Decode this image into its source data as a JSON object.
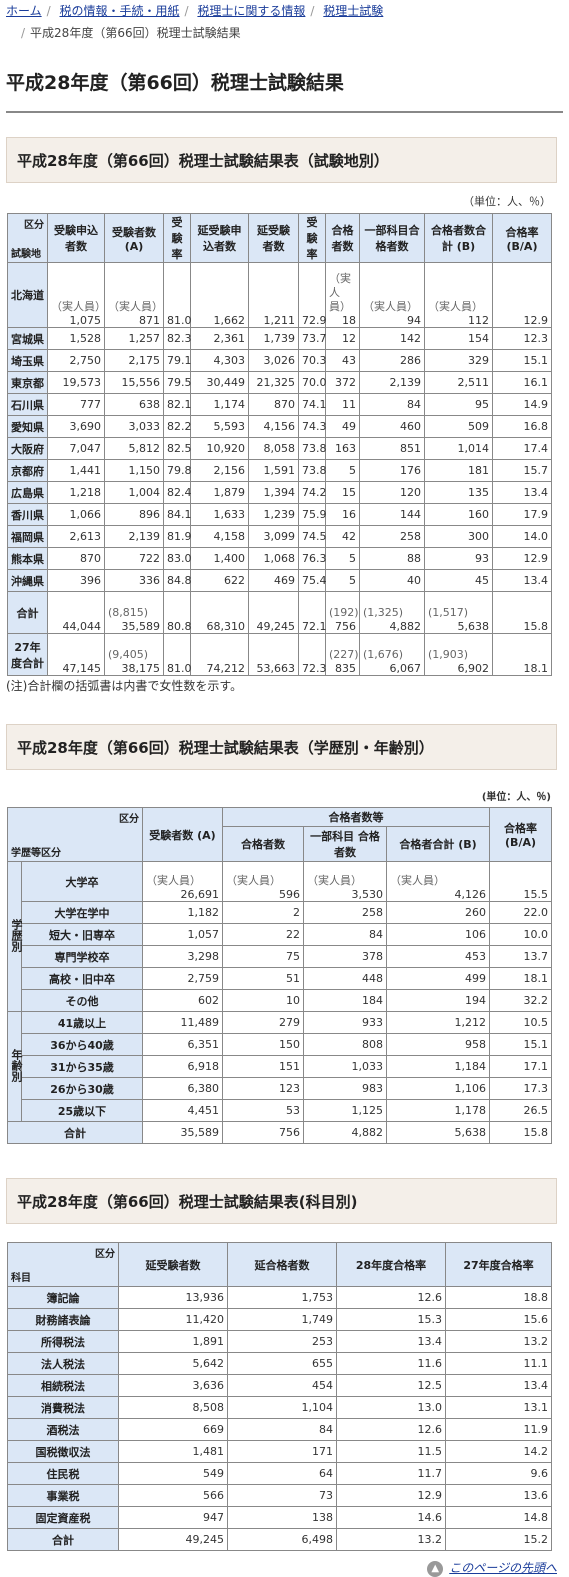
{
  "breadcrumb": {
    "items": [
      "ホーム",
      "税の情報・手続・用紙",
      "税理士に関する情報",
      "税理士試験"
    ],
    "current": "平成28年度（第66回）税理士試験結果"
  },
  "page_title": "平成28年度（第66回）税理士試験結果",
  "table1": {
    "title": "平成28年度（第66回）税理士試験結果表（試験地別）",
    "unit": "（単位：人、％）",
    "corner_top": "区分",
    "corner_bottom": "試験地",
    "headers": [
      "受験申込者数",
      "受験者数 (A)",
      "受験率",
      "延受験申込者数",
      "延受験者数",
      "受験率",
      "合格者数",
      "一部科目合格者数",
      "合格者数合計 (B)",
      "合格率 (B/A)"
    ],
    "note_actual": "（実人員）",
    "rows": [
      {
        "name": "北海道",
        "v": [
          "1,075",
          "871",
          "81.0",
          "1,662",
          "1,211",
          "72.9",
          "18",
          "94",
          "112",
          "12.9"
        ]
      },
      {
        "name": "宮城県",
        "v": [
          "1,528",
          "1,257",
          "82.3",
          "2,361",
          "1,739",
          "73.7",
          "12",
          "142",
          "154",
          "12.3"
        ]
      },
      {
        "name": "埼玉県",
        "v": [
          "2,750",
          "2,175",
          "79.1",
          "4,303",
          "3,026",
          "70.3",
          "43",
          "286",
          "329",
          "15.1"
        ]
      },
      {
        "name": "東京都",
        "v": [
          "19,573",
          "15,556",
          "79.5",
          "30,449",
          "21,325",
          "70.0",
          "372",
          "2,139",
          "2,511",
          "16.1"
        ]
      },
      {
        "name": "石川県",
        "v": [
          "777",
          "638",
          "82.1",
          "1,174",
          "870",
          "74.1",
          "11",
          "84",
          "95",
          "14.9"
        ]
      },
      {
        "name": "愛知県",
        "v": [
          "3,690",
          "3,033",
          "82.2",
          "5,593",
          "4,156",
          "74.3",
          "49",
          "460",
          "509",
          "16.8"
        ]
      },
      {
        "name": "大阪府",
        "v": [
          "7,047",
          "5,812",
          "82.5",
          "10,920",
          "8,058",
          "73.8",
          "163",
          "851",
          "1,014",
          "17.4"
        ]
      },
      {
        "name": "京都府",
        "v": [
          "1,441",
          "1,150",
          "79.8",
          "2,156",
          "1,591",
          "73.8",
          "5",
          "176",
          "181",
          "15.7"
        ]
      },
      {
        "name": "広島県",
        "v": [
          "1,218",
          "1,004",
          "82.4",
          "1,879",
          "1,394",
          "74.2",
          "15",
          "120",
          "135",
          "13.4"
        ]
      },
      {
        "name": "香川県",
        "v": [
          "1,066",
          "896",
          "84.1",
          "1,633",
          "1,239",
          "75.9",
          "16",
          "144",
          "160",
          "17.9"
        ]
      },
      {
        "name": "福岡県",
        "v": [
          "2,613",
          "2,139",
          "81.9",
          "4,158",
          "3,099",
          "74.5",
          "42",
          "258",
          "300",
          "14.0"
        ]
      },
      {
        "name": "熊本県",
        "v": [
          "870",
          "722",
          "83.0",
          "1,400",
          "1,068",
          "76.3",
          "5",
          "88",
          "93",
          "12.9"
        ]
      },
      {
        "name": "沖縄県",
        "v": [
          "396",
          "336",
          "84.8",
          "622",
          "469",
          "75.4",
          "5",
          "40",
          "45",
          "13.4"
        ]
      }
    ],
    "total": {
      "name": "合計",
      "v": [
        "44,044",
        "35,589",
        "80.8",
        "68,310",
        "49,245",
        "72.1",
        "756",
        "4,882",
        "5,638",
        "15.8"
      ],
      "p": [
        "",
        "(8,815)",
        "",
        "",
        "",
        "",
        "(192)",
        "(1,325)",
        "(1,517)",
        ""
      ]
    },
    "prev": {
      "name": "27年度合計",
      "v": [
        "47,145",
        "38,175",
        "81.0",
        "74,212",
        "53,663",
        "72.3",
        "835",
        "6,067",
        "6,902",
        "18.1"
      ],
      "p": [
        "",
        "(9,405)",
        "",
        "",
        "",
        "",
        "(227)",
        "(1,676)",
        "(1,903)",
        ""
      ]
    },
    "footnote": "(注)合計欄の括弧書は内書で女性数を示す。"
  },
  "table2": {
    "title": "平成28年度（第66回）税理士試験結果表（学歴別・年齢別）",
    "unit": "(単位：人、％)",
    "corner_top": "区分",
    "corner_bottom": "学歴等区分",
    "h_examinees": "受験者数 (A)",
    "h_group": "合格者数等",
    "h_passers": "合格者数",
    "h_partial": "一部科目 合格者数",
    "h_total": "合格者合計 (B)",
    "h_rate": "合格率 (B/A)",
    "group_edu": "学歴別",
    "group_age": "年齢別",
    "note_actual": "（実人員）",
    "rows": [
      {
        "name": "大学卒",
        "v": [
          "26,691",
          "596",
          "3,530",
          "4,126",
          "15.5"
        ]
      },
      {
        "name": "大学在学中",
        "v": [
          "1,182",
          "2",
          "258",
          "260",
          "22.0"
        ]
      },
      {
        "name": "短大・旧専卒",
        "v": [
          "1,057",
          "22",
          "84",
          "106",
          "10.0"
        ]
      },
      {
        "name": "専門学校卒",
        "v": [
          "3,298",
          "75",
          "378",
          "453",
          "13.7"
        ]
      },
      {
        "name": "高校・旧中卒",
        "v": [
          "2,759",
          "51",
          "448",
          "499",
          "18.1"
        ]
      },
      {
        "name": "その他",
        "v": [
          "602",
          "10",
          "184",
          "194",
          "32.2"
        ]
      },
      {
        "name": "41歳以上",
        "v": [
          "11,489",
          "279",
          "933",
          "1,212",
          "10.5"
        ]
      },
      {
        "name": "36から40歳",
        "v": [
          "6,351",
          "150",
          "808",
          "958",
          "15.1"
        ]
      },
      {
        "name": "31から35歳",
        "v": [
          "6,918",
          "151",
          "1,033",
          "1,184",
          "17.1"
        ]
      },
      {
        "name": "26から30歳",
        "v": [
          "6,380",
          "123",
          "983",
          "1,106",
          "17.3"
        ]
      },
      {
        "name": "25歳以下",
        "v": [
          "4,451",
          "53",
          "1,125",
          "1,178",
          "26.5"
        ]
      }
    ],
    "total": {
      "name": "合計",
      "v": [
        "35,589",
        "756",
        "4,882",
        "5,638",
        "15.8"
      ]
    }
  },
  "table3": {
    "title": "平成28年度（第66回）税理士試験結果表(科目別)",
    "corner_top": "区分",
    "corner_bottom": "科目",
    "headers": [
      "延受験者数",
      "延合格者数",
      "28年度合格率",
      "27年度合格率"
    ],
    "rows": [
      {
        "name": "簿記論",
        "v": [
          "13,936",
          "1,753",
          "12.6",
          "18.8"
        ]
      },
      {
        "name": "財務諸表論",
        "v": [
          "11,420",
          "1,749",
          "15.3",
          "15.6"
        ]
      },
      {
        "name": "所得税法",
        "v": [
          "1,891",
          "253",
          "13.4",
          "13.2"
        ]
      },
      {
        "name": "法人税法",
        "v": [
          "5,642",
          "655",
          "11.6",
          "11.1"
        ]
      },
      {
        "name": "相続税法",
        "v": [
          "3,636",
          "454",
          "12.5",
          "13.4"
        ]
      },
      {
        "name": "消費税法",
        "v": [
          "8,508",
          "1,104",
          "13.0",
          "13.1"
        ]
      },
      {
        "name": "酒税法",
        "v": [
          "669",
          "84",
          "12.6",
          "11.9"
        ]
      },
      {
        "name": "国税徴収法",
        "v": [
          "1,481",
          "171",
          "11.5",
          "14.2"
        ]
      },
      {
        "name": "住民税",
        "v": [
          "549",
          "64",
          "11.7",
          "9.6"
        ]
      },
      {
        "name": "事業税",
        "v": [
          "566",
          "73",
          "12.9",
          "13.6"
        ]
      },
      {
        "name": "固定資産税",
        "v": [
          "947",
          "138",
          "14.6",
          "14.8"
        ]
      },
      {
        "name": "合計",
        "v": [
          "49,245",
          "6,498",
          "13.2",
          "15.2"
        ]
      }
    ]
  },
  "back_to_top": "このページの先頭へ"
}
